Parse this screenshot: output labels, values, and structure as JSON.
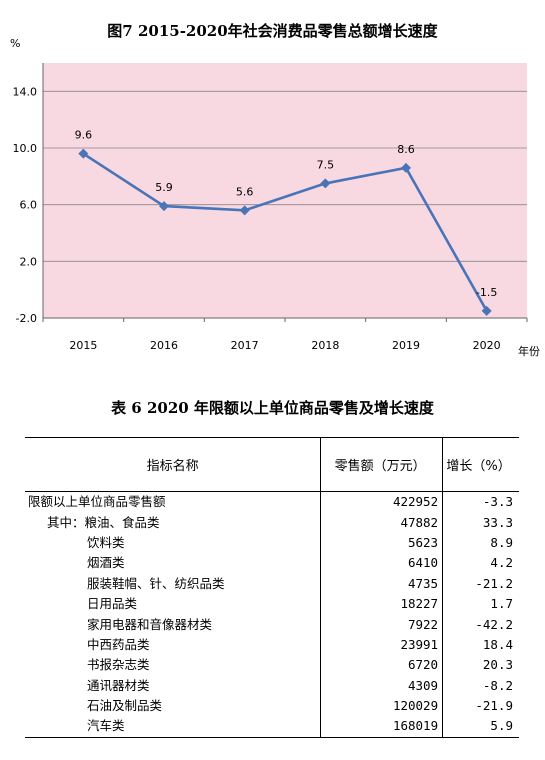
{
  "chart_data": {
    "type": "line",
    "title": "图7  2015-2020年社会消费品零售总额增长速度",
    "ylabel": "%",
    "xlabel": "年份",
    "categories": [
      "2015",
      "2016",
      "2017",
      "2018",
      "2019",
      "2020"
    ],
    "series": [
      {
        "values": [
          9.6,
          5.9,
          5.6,
          7.5,
          8.6,
          -1.5
        ],
        "data_labels": [
          "9.6",
          "5.9",
          "5.6",
          "7.5",
          "8.6",
          "-1.5"
        ]
      }
    ],
    "ylim": [
      -2.0,
      16.0
    ],
    "y_ticks": [
      "14.0",
      "10.0",
      "6.0",
      "2.0",
      "-2.0"
    ],
    "y_tick_values": [
      14,
      10,
      6,
      2,
      -2
    ],
    "grid": true,
    "colors": {
      "plot_bg": "#f8d8e1",
      "line": "#4a74b8",
      "grid": "#888888"
    }
  },
  "table": {
    "title": "表 6   2020 年限额以上单位商品零售及增长速度",
    "headers": [
      "指标名称",
      "零售额（万元）",
      "增长（%）"
    ],
    "rows": [
      {
        "name": "限额以上单位商品零售额",
        "sales": "422952",
        "growth": "-3.3",
        "indent": 0
      },
      {
        "name": "其中：粮油、食品类",
        "sales": "47882",
        "growth": "33.3",
        "indent": 1
      },
      {
        "name": "饮料类",
        "sales": "5623",
        "growth": "8.9",
        "indent": 2
      },
      {
        "name": "烟酒类",
        "sales": "6410",
        "growth": "4.2",
        "indent": 2
      },
      {
        "name": "服装鞋帽、针、纺织品类",
        "sales": "4735",
        "growth": "-21.2",
        "indent": 2
      },
      {
        "name": "日用品类",
        "sales": "18227",
        "growth": "1.7",
        "indent": 2
      },
      {
        "name": "家用电器和音像器材类",
        "sales": "7922",
        "growth": "-42.2",
        "indent": 2
      },
      {
        "name": "中西药品类",
        "sales": "23991",
        "growth": "18.4",
        "indent": 2
      },
      {
        "name": "书报杂志类",
        "sales": "6720",
        "growth": "20.3",
        "indent": 2
      },
      {
        "name": "通讯器材类",
        "sales": "4309",
        "growth": "-8.2",
        "indent": 2
      },
      {
        "name": "石油及制品类",
        "sales": "120029",
        "growth": "-21.9",
        "indent": 2
      },
      {
        "name": "汽车类",
        "sales": "168019",
        "growth": "5.9",
        "indent": 2
      }
    ]
  }
}
